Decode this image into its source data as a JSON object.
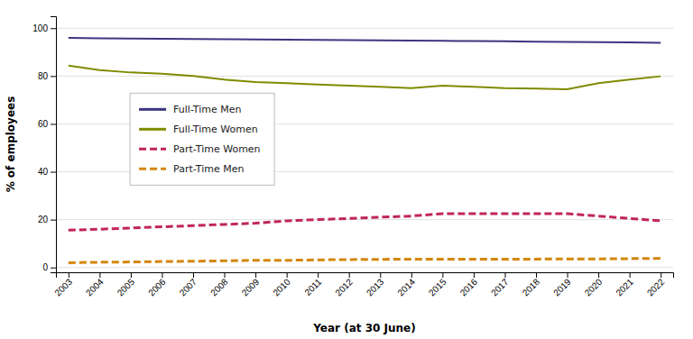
{
  "chart_data": {
    "type": "line",
    "x_label": "Year (at 30 June)",
    "y_label": "% of employees",
    "x": [
      2003,
      2004,
      2005,
      2006,
      2007,
      2008,
      2009,
      2010,
      2011,
      2012,
      2013,
      2014,
      2015,
      2016,
      2017,
      2018,
      2019,
      2020,
      2021,
      2022
    ],
    "series": [
      {
        "name": "Full-Time Men",
        "color": "#3c3680",
        "line_style": "solid",
        "values": [
          96.0,
          95.8,
          95.7,
          95.6,
          95.5,
          95.4,
          95.3,
          95.2,
          95.1,
          95.0,
          94.9,
          94.8,
          94.7,
          94.6,
          94.5,
          94.4,
          94.3,
          94.2,
          94.1,
          93.9
        ]
      },
      {
        "name": "Full-Time Women",
        "color": "#7f8b00",
        "line_style": "solid",
        "values": [
          84.4,
          82.5,
          81.5,
          81.0,
          80.0,
          78.5,
          77.5,
          77.0,
          76.5,
          76.0,
          75.5,
          75.0,
          76.0,
          75.5,
          75.0,
          74.8,
          74.5,
          77.0,
          78.5,
          79.9
        ]
      },
      {
        "name": "Part-Time Women",
        "color": "#c0255a",
        "line_style": "dashed",
        "values": [
          15.6,
          16.0,
          16.5,
          17.0,
          17.5,
          18.0,
          18.5,
          19.5,
          20.0,
          20.5,
          21.0,
          21.5,
          22.5,
          22.5,
          22.5,
          22.5,
          22.5,
          21.5,
          20.5,
          19.5
        ]
      },
      {
        "name": "Part-Time Men",
        "color": "#d4860a",
        "line_style": "dashed",
        "values": [
          2.0,
          2.2,
          2.3,
          2.5,
          2.6,
          2.8,
          3.0,
          3.0,
          3.2,
          3.3,
          3.4,
          3.5,
          3.5,
          3.5,
          3.5,
          3.5,
          3.6,
          3.6,
          3.7,
          3.8
        ]
      }
    ],
    "xlim": [
      2002.6,
      2022.4
    ],
    "xticks": [
      2003,
      2004,
      2005,
      2006,
      2007,
      2008,
      2009,
      2010,
      2011,
      2012,
      2013,
      2014,
      2015,
      2016,
      2017,
      2018,
      2019,
      2020,
      2021,
      2022
    ],
    "ylim": [
      -2,
      105
    ],
    "yticks": [
      0,
      20,
      40,
      60,
      80,
      100
    ],
    "grid": true,
    "legend": "left"
  }
}
